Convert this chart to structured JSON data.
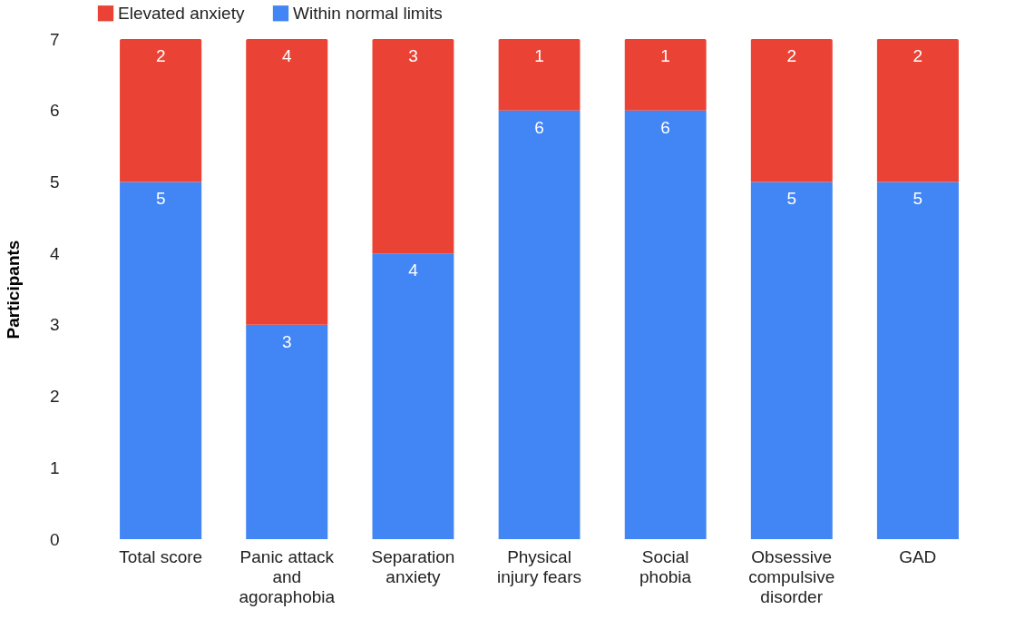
{
  "chart_data": {
    "type": "bar",
    "stacked": true,
    "ylabel": "Participants",
    "categories": [
      "Total score",
      "Panic attack and agoraphobia",
      "Separation anxiety",
      "Physical injury fears",
      "Social phobia",
      "Obsessive compulsive disorder",
      "GAD"
    ],
    "series": [
      {
        "name": "Within normal limits",
        "color": "#4285f4",
        "values": [
          5,
          3,
          4,
          6,
          6,
          5,
          5
        ]
      },
      {
        "name": "Elevated anxiety",
        "color": "#ea4335",
        "values": [
          2,
          4,
          3,
          1,
          1,
          2,
          2
        ]
      }
    ],
    "ylim": [
      0,
      7
    ],
    "yticks": [
      0,
      1,
      2,
      3,
      4,
      5,
      6,
      7
    ],
    "grid": false,
    "legend": "top",
    "data_labels": true
  }
}
